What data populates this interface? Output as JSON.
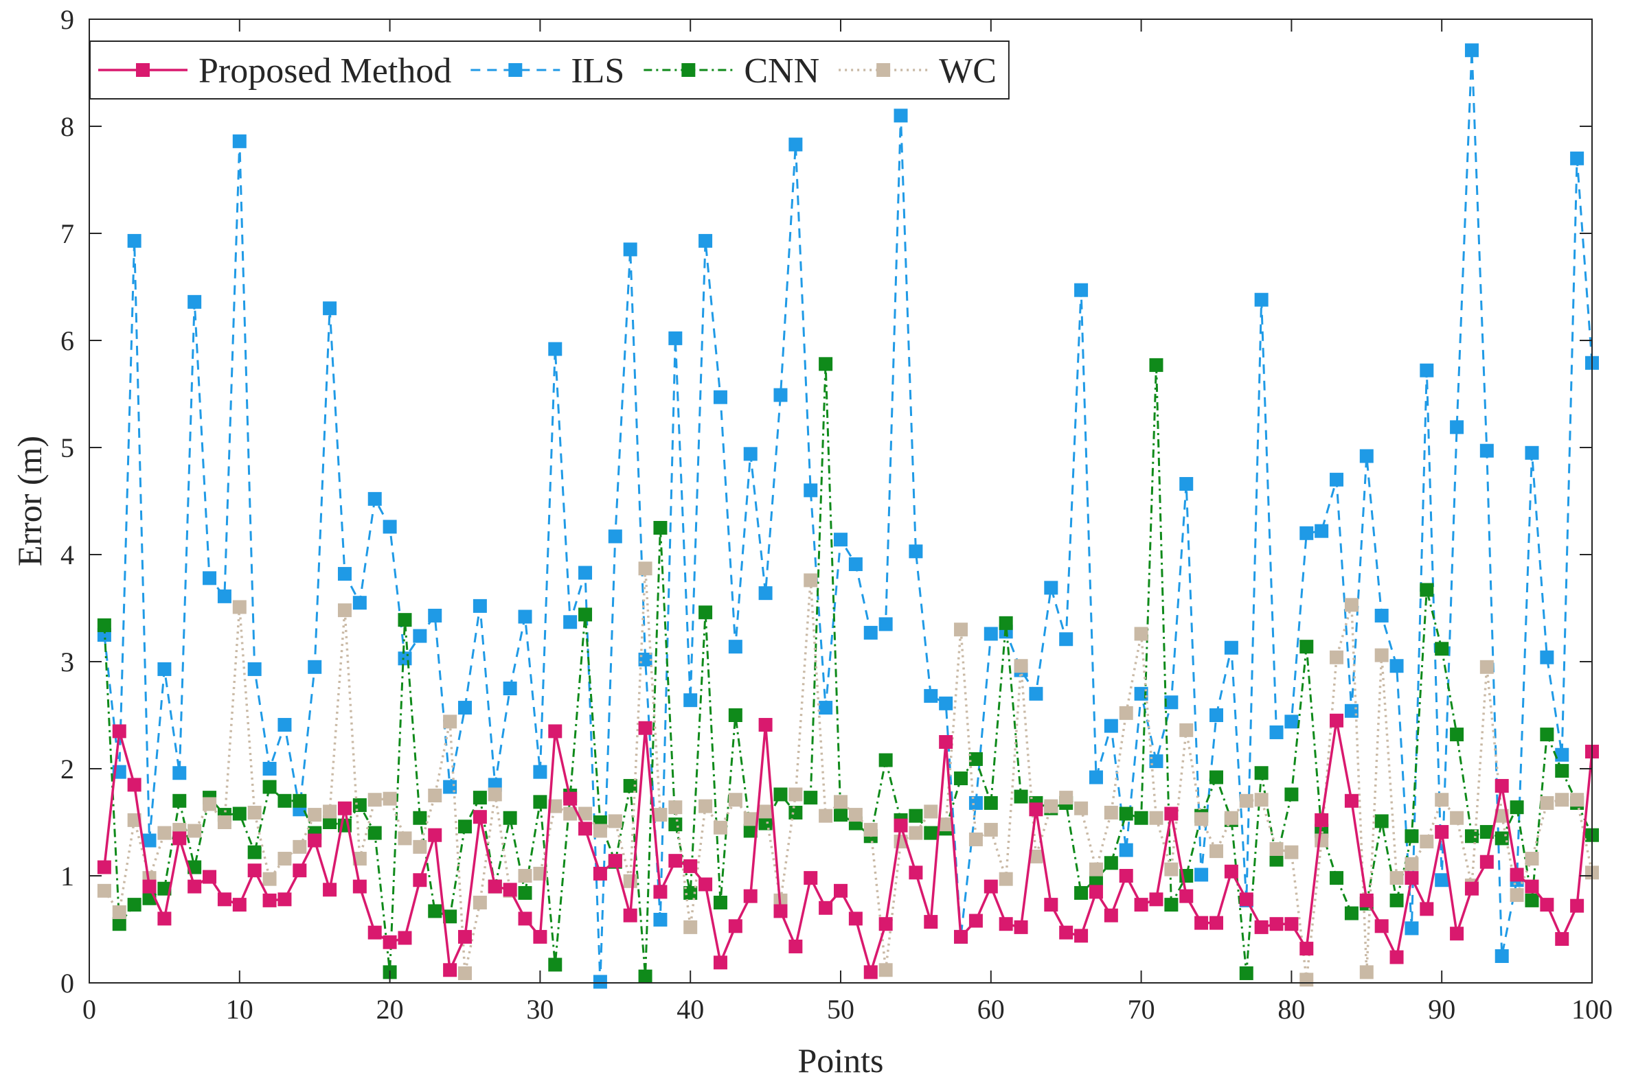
{
  "chart_data": {
    "type": "line",
    "title": "",
    "xlabel": "Points",
    "ylabel": "Error (m)",
    "xlim": [
      0,
      100
    ],
    "ylim": [
      0,
      9
    ],
    "xticks": [
      0,
      10,
      20,
      30,
      40,
      50,
      60,
      70,
      80,
      90,
      100
    ],
    "yticks": [
      0,
      1,
      2,
      3,
      4,
      5,
      6,
      7,
      8,
      9
    ],
    "legend_position": "top-left",
    "grid": false,
    "x": [
      1,
      2,
      3,
      4,
      5,
      6,
      7,
      8,
      9,
      10,
      11,
      12,
      13,
      14,
      15,
      16,
      17,
      18,
      19,
      20,
      21,
      22,
      23,
      24,
      25,
      26,
      27,
      28,
      29,
      30,
      31,
      32,
      33,
      34,
      35,
      36,
      37,
      38,
      39,
      40,
      41,
      42,
      43,
      44,
      45,
      46,
      47,
      48,
      49,
      50,
      51,
      52,
      53,
      54,
      55,
      56,
      57,
      58,
      59,
      60,
      61,
      62,
      63,
      64,
      65,
      66,
      67,
      68,
      69,
      70,
      71,
      72,
      73,
      74,
      75,
      76,
      77,
      78,
      79,
      80,
      81,
      82,
      83,
      84,
      85,
      86,
      87,
      88,
      89,
      90,
      91,
      92,
      93,
      94,
      95,
      96,
      97,
      98,
      99,
      100
    ],
    "series": [
      {
        "name": "ILS",
        "color": "#1f9ae6",
        "line_style": "dashed",
        "marker": "square",
        "values": [
          3.25,
          1.97,
          6.93,
          1.33,
          2.93,
          1.96,
          6.36,
          3.78,
          3.61,
          7.86,
          2.93,
          2.0,
          2.41,
          1.62,
          2.95,
          6.3,
          3.82,
          3.55,
          4.52,
          4.26,
          3.03,
          3.24,
          3.43,
          1.83,
          2.57,
          3.52,
          1.85,
          2.75,
          3.42,
          1.97,
          5.92,
          3.37,
          3.83,
          0.01,
          4.17,
          6.85,
          3.02,
          0.59,
          6.02,
          2.64,
          6.93,
          5.47,
          3.14,
          4.94,
          3.64,
          5.49,
          7.83,
          4.6,
          2.57,
          4.14,
          3.91,
          3.27,
          3.35,
          8.1,
          4.03,
          2.68,
          2.61,
          0.43,
          1.68,
          3.26,
          3.28,
          2.92,
          2.7,
          3.69,
          3.21,
          6.47,
          1.92,
          2.4,
          1.24,
          2.7,
          2.07,
          2.62,
          4.66,
          1.01,
          2.5,
          3.13,
          0.77,
          6.38,
          2.34,
          2.44,
          4.2,
          4.22,
          4.7,
          2.54,
          4.92,
          3.43,
          2.96,
          0.51,
          5.72,
          0.96,
          5.19,
          8.71,
          4.97,
          0.25,
          0.96,
          4.95,
          3.04,
          2.13,
          7.7,
          5.79
        ]
      },
      {
        "name": "CNN",
        "color": "#0f8a1a",
        "line_style": "dashdot",
        "marker": "square",
        "values": [
          3.34,
          0.55,
          0.73,
          0.79,
          0.88,
          1.7,
          1.08,
          1.73,
          1.57,
          1.58,
          1.22,
          1.83,
          1.7,
          1.7,
          1.4,
          1.5,
          1.47,
          1.66,
          1.4,
          0.1,
          3.39,
          1.54,
          0.67,
          0.62,
          1.46,
          1.73,
          0.9,
          1.54,
          0.84,
          1.69,
          0.17,
          1.75,
          3.44,
          1.5,
          1.13,
          1.84,
          0.06,
          4.25,
          1.48,
          0.84,
          3.46,
          0.75,
          2.5,
          1.42,
          1.49,
          1.76,
          1.59,
          1.73,
          5.78,
          1.57,
          1.49,
          1.37,
          2.08,
          1.52,
          1.56,
          1.4,
          1.44,
          1.91,
          2.09,
          1.68,
          3.36,
          1.74,
          1.68,
          1.63,
          1.68,
          0.84,
          0.97,
          1.12,
          1.58,
          1.54,
          5.77,
          0.73,
          1.0,
          1.56,
          1.92,
          1.52,
          0.09,
          1.96,
          1.15,
          1.76,
          3.14,
          1.42,
          0.98,
          0.65,
          0.74,
          1.51,
          0.77,
          1.37,
          3.67,
          3.12,
          2.32,
          1.37,
          1.41,
          1.35,
          1.64,
          0.77,
          2.32,
          1.98,
          1.68,
          1.38
        ]
      },
      {
        "name": "WC",
        "color": "#c9b9a5",
        "line_style": "dotted",
        "marker": "square",
        "values": [
          0.86,
          0.66,
          1.52,
          0.98,
          1.4,
          1.43,
          1.42,
          1.67,
          1.5,
          3.51,
          1.59,
          0.97,
          1.16,
          1.27,
          1.57,
          1.6,
          3.48,
          1.16,
          1.71,
          1.72,
          1.35,
          1.27,
          1.75,
          2.44,
          0.09,
          0.75,
          1.76,
          0.86,
          1.0,
          1.02,
          1.65,
          1.58,
          1.58,
          1.42,
          1.51,
          0.95,
          3.87,
          1.57,
          1.64,
          0.52,
          1.65,
          1.45,
          1.71,
          1.53,
          1.6,
          0.77,
          1.76,
          3.76,
          1.56,
          1.69,
          1.57,
          1.43,
          0.12,
          1.32,
          1.4,
          1.6,
          1.48,
          3.3,
          1.34,
          1.43,
          0.97,
          2.96,
          1.18,
          1.65,
          1.73,
          1.63,
          1.06,
          1.59,
          2.52,
          3.26,
          1.54,
          1.06,
          2.36,
          1.53,
          1.23,
          1.54,
          1.7,
          1.71,
          1.25,
          1.22,
          0.03,
          1.33,
          3.04,
          3.53,
          0.1,
          3.06,
          0.98,
          1.11,
          1.32,
          1.71,
          1.54,
          0.91,
          2.95,
          1.56,
          0.82,
          1.16,
          1.68,
          1.71,
          1.71,
          1.03
        ]
      },
      {
        "name": "Proposed Method",
        "color": "#d9196e",
        "line_style": "solid",
        "marker": "square",
        "values": [
          1.08,
          2.35,
          1.85,
          0.9,
          0.6,
          1.35,
          0.9,
          0.99,
          0.78,
          0.73,
          1.05,
          0.77,
          0.78,
          1.05,
          1.33,
          0.87,
          1.63,
          0.9,
          0.47,
          0.38,
          0.42,
          0.96,
          1.38,
          0.12,
          0.43,
          1.55,
          0.9,
          0.87,
          0.6,
          0.43,
          2.35,
          1.72,
          1.44,
          1.02,
          1.14,
          0.63,
          2.38,
          0.85,
          1.14,
          1.09,
          0.92,
          0.19,
          0.53,
          0.81,
          2.41,
          0.67,
          0.34,
          0.98,
          0.7,
          0.86,
          0.6,
          0.1,
          0.55,
          1.47,
          1.03,
          0.57,
          2.25,
          0.43,
          0.58,
          0.9,
          0.55,
          0.52,
          1.62,
          0.73,
          0.47,
          0.44,
          0.85,
          0.63,
          1.0,
          0.73,
          0.78,
          1.58,
          0.81,
          0.56,
          0.56,
          1.04,
          0.78,
          0.52,
          0.55,
          0.55,
          0.32,
          1.52,
          2.45,
          1.7,
          0.77,
          0.53,
          0.24,
          0.98,
          0.69,
          1.41,
          0.46,
          0.88,
          1.13,
          1.84,
          1.01,
          0.9,
          0.73,
          0.41,
          0.72,
          2.16
        ]
      }
    ],
    "legend_order": [
      "Proposed Method",
      "ILS",
      "CNN",
      "WC"
    ]
  }
}
